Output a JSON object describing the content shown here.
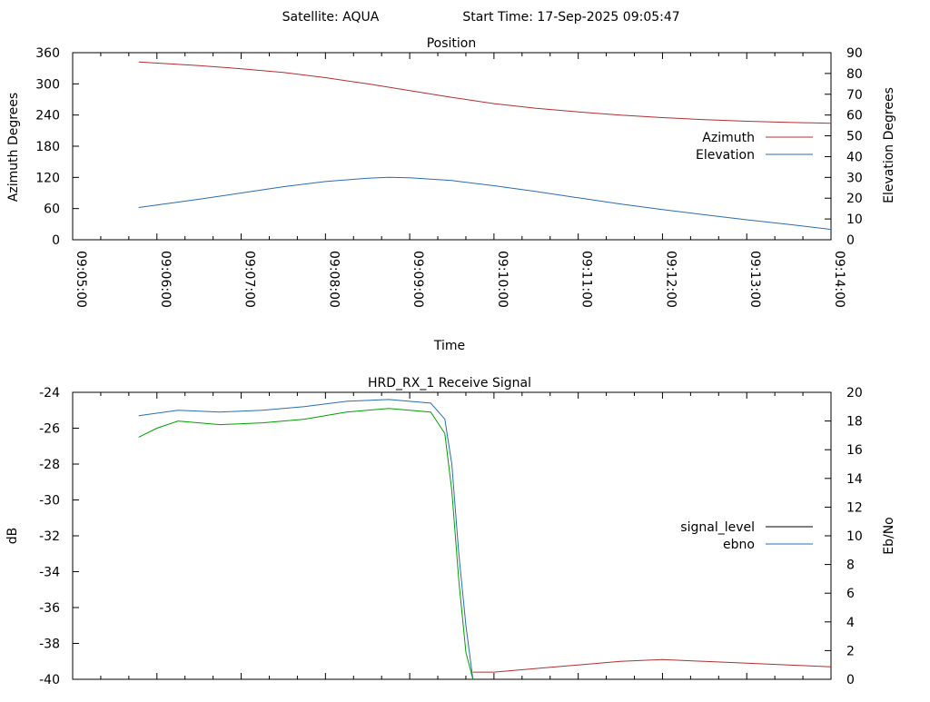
{
  "header": {
    "satellite": "Satellite: AQUA",
    "start_time": "Start Time: 17-Sep-2025 09:05:47"
  },
  "chart_data": [
    {
      "type": "line",
      "title": "Position",
      "xlabel": "Time",
      "ylabel": "Azimuth Degrees",
      "y2label": "Elevation Degrees",
      "x_ticks": [
        "09:05:00",
        "09:06:00",
        "09:07:00",
        "09:08:00",
        "09:09:00",
        "09:10:00",
        "09:11:00",
        "09:12:00",
        "09:13:00",
        "09:14:00"
      ],
      "xlim_minutes": [
        0,
        9
      ],
      "ylim": [
        0,
        360
      ],
      "y_ticks": [
        0,
        60,
        120,
        180,
        240,
        300,
        360
      ],
      "y2lim": [
        0,
        90
      ],
      "y2_ticks": [
        0,
        10,
        20,
        30,
        40,
        50,
        60,
        70,
        80,
        90
      ],
      "legend_position": "right",
      "series": [
        {
          "name": "Azimuth",
          "axis": "y",
          "color": "#b03030",
          "x": [
            "09:05:47",
            "09:06:30",
            "09:07:00",
            "09:07:30",
            "09:08:00",
            "09:08:30",
            "09:09:00",
            "09:09:30",
            "09:10:00",
            "09:10:30",
            "09:11:00",
            "09:11:30",
            "09:12:00",
            "09:12:30",
            "09:13:00",
            "09:13:30",
            "09:14:00"
          ],
          "values": [
            342,
            335,
            329,
            322,
            312,
            300,
            287,
            274,
            262,
            253,
            246,
            240,
            235,
            231,
            228,
            226,
            224
          ]
        },
        {
          "name": "Elevation",
          "axis": "y2",
          "color": "#2a6db0",
          "x": [
            "09:05:47",
            "09:06:30",
            "09:07:00",
            "09:07:30",
            "09:08:00",
            "09:08:30",
            "09:08:45",
            "09:09:00",
            "09:09:30",
            "09:10:00",
            "09:10:30",
            "09:11:00",
            "09:11:30",
            "09:12:00",
            "09:12:30",
            "09:13:00",
            "09:13:30",
            "09:14:00"
          ],
          "values": [
            15.5,
            19.5,
            22.5,
            25.5,
            28,
            29.6,
            30,
            29.8,
            28.5,
            26,
            23.2,
            20.2,
            17.2,
            14.5,
            12,
            9.6,
            7.4,
            5
          ]
        }
      ]
    },
    {
      "type": "line",
      "title": "HRD_RX_1 Receive Signal",
      "xlabel": "",
      "ylabel": "dB",
      "y2label": "Eb/No",
      "xlim_minutes": [
        0,
        9
      ],
      "ylim": [
        -40,
        -24
      ],
      "y_ticks": [
        -40,
        -38,
        -36,
        -34,
        -32,
        -30,
        -28,
        -26,
        -24
      ],
      "y2lim": [
        0,
        20
      ],
      "y2_ticks": [
        0,
        2,
        4,
        6,
        8,
        10,
        12,
        14,
        16,
        18,
        20
      ],
      "legend_position": "right",
      "legend": [
        {
          "name": "signal_level",
          "color": "#000000"
        },
        {
          "name": "ebno",
          "color": "#2a6db0"
        }
      ],
      "series": [
        {
          "name": "",
          "axis": "y",
          "color": "#2a6db0",
          "x": [
            "09:05:47",
            "09:06:15",
            "09:06:45",
            "09:07:15",
            "09:07:45",
            "09:08:15",
            "09:08:45",
            "09:09:15",
            "09:09:25",
            "09:09:30",
            "09:09:35",
            "09:09:40",
            "09:09:45"
          ],
          "values": [
            -25.3,
            -25.0,
            -25.1,
            -25.0,
            -24.8,
            -24.5,
            -24.4,
            -24.6,
            -25.5,
            -28.0,
            -33.0,
            -37.0,
            -40.0
          ]
        },
        {
          "name": "",
          "axis": "y",
          "color": "#00a000",
          "x": [
            "09:05:47",
            "09:06:00",
            "09:06:15",
            "09:06:45",
            "09:07:15",
            "09:07:45",
            "09:08:15",
            "09:08:45",
            "09:09:15",
            "09:09:25",
            "09:09:30",
            "09:09:35",
            "09:09:40",
            "09:09:45"
          ],
          "values": [
            -26.5,
            -26.0,
            -25.6,
            -25.8,
            -25.7,
            -25.5,
            -25.1,
            -24.9,
            -25.1,
            -26.3,
            -29.5,
            -34.5,
            -38.5,
            -40.0
          ]
        },
        {
          "name": "",
          "axis": "y",
          "color": "#b03030",
          "x": [
            "09:09:45",
            "09:10:00",
            "09:10:30",
            "09:11:00",
            "09:11:30",
            "09:12:00",
            "09:12:30",
            "09:13:00",
            "09:13:30",
            "09:14:00"
          ],
          "values": [
            -39.6,
            -39.6,
            -39.4,
            -39.2,
            -39.0,
            -38.9,
            -39.0,
            -39.1,
            -39.2,
            -39.3
          ]
        }
      ]
    }
  ]
}
